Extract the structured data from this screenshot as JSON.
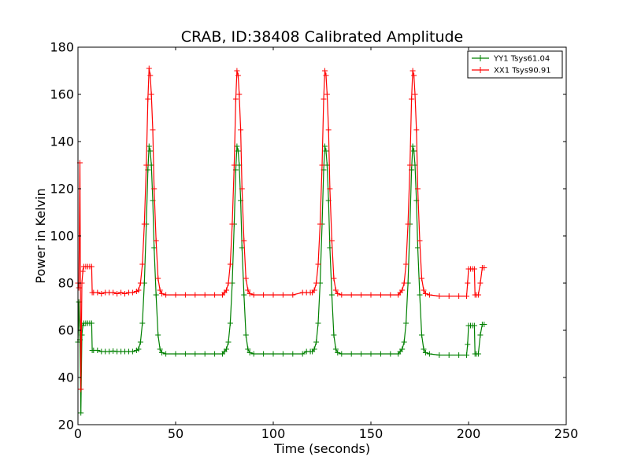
{
  "chart_data": {
    "type": "line",
    "title": "CRAB, ID:38408 Calibrated Amplitude",
    "xlabel": "Time (seconds)",
    "ylabel": "Power in Kelvin",
    "xlim": [
      0,
      250
    ],
    "ylim": [
      20,
      180
    ],
    "xticks": [
      0,
      50,
      100,
      150,
      200,
      250
    ],
    "yticks": [
      20,
      40,
      60,
      80,
      100,
      120,
      140,
      160,
      180
    ],
    "grid": false,
    "legend_position": "top-right",
    "marker": "+",
    "series": [
      {
        "name": "YY1 Tsys61.04",
        "color": "#008000",
        "points": [
          [
            0,
            55
          ],
          [
            0.5,
            72
          ],
          [
            1,
            56
          ],
          [
            1.5,
            25
          ],
          [
            2,
            58
          ],
          [
            2.5,
            62
          ],
          [
            3,
            63
          ],
          [
            4,
            63
          ],
          [
            5,
            63
          ],
          [
            6,
            63
          ],
          [
            7,
            63
          ],
          [
            7.3,
            51.5
          ],
          [
            8,
            51.5
          ],
          [
            10,
            51.5
          ],
          [
            12,
            51
          ],
          [
            14,
            51
          ],
          [
            16,
            51
          ],
          [
            18,
            51.2
          ],
          [
            20,
            51
          ],
          [
            22,
            51
          ],
          [
            24,
            51
          ],
          [
            26,
            51
          ],
          [
            28,
            51
          ],
          [
            30,
            51.5
          ],
          [
            31,
            52
          ],
          [
            32,
            55
          ],
          [
            33,
            63
          ],
          [
            34,
            80
          ],
          [
            35,
            105
          ],
          [
            35.8,
            128
          ],
          [
            36.4,
            138
          ],
          [
            37,
            136
          ],
          [
            37.6,
            130
          ],
          [
            38.3,
            115
          ],
          [
            39,
            95
          ],
          [
            40,
            75
          ],
          [
            41,
            58
          ],
          [
            42,
            52
          ],
          [
            43,
            50.5
          ],
          [
            45,
            50
          ],
          [
            50,
            50
          ],
          [
            55,
            50
          ],
          [
            60,
            50
          ],
          [
            65,
            50
          ],
          [
            70,
            50
          ],
          [
            74,
            50
          ],
          [
            75,
            51
          ],
          [
            76,
            52
          ],
          [
            77,
            55
          ],
          [
            78,
            63
          ],
          [
            79,
            80
          ],
          [
            80,
            105
          ],
          [
            80.8,
            128
          ],
          [
            81.4,
            138
          ],
          [
            82,
            136
          ],
          [
            82.6,
            130
          ],
          [
            83.3,
            115
          ],
          [
            84,
            95
          ],
          [
            85,
            75
          ],
          [
            86,
            58
          ],
          [
            87,
            52
          ],
          [
            88,
            50.5
          ],
          [
            90,
            50
          ],
          [
            95,
            50
          ],
          [
            100,
            50
          ],
          [
            105,
            50
          ],
          [
            110,
            50
          ],
          [
            115,
            50
          ],
          [
            117,
            51
          ],
          [
            119,
            51
          ],
          [
            120,
            51
          ],
          [
            121,
            52
          ],
          [
            122,
            55
          ],
          [
            123,
            63
          ],
          [
            124,
            80
          ],
          [
            125,
            105
          ],
          [
            125.8,
            128
          ],
          [
            126.4,
            138
          ],
          [
            127,
            136
          ],
          [
            127.6,
            130
          ],
          [
            128.3,
            115
          ],
          [
            129,
            95
          ],
          [
            130,
            75
          ],
          [
            131,
            58
          ],
          [
            132,
            52
          ],
          [
            133,
            50.5
          ],
          [
            135,
            50
          ],
          [
            140,
            50
          ],
          [
            145,
            50
          ],
          [
            150,
            50
          ],
          [
            155,
            50
          ],
          [
            160,
            50
          ],
          [
            164,
            50
          ],
          [
            165,
            51
          ],
          [
            166,
            52
          ],
          [
            167,
            55
          ],
          [
            168,
            63
          ],
          [
            169,
            80
          ],
          [
            170,
            105
          ],
          [
            170.8,
            128
          ],
          [
            171.4,
            138
          ],
          [
            172,
            136
          ],
          [
            172.6,
            130
          ],
          [
            173.3,
            115
          ],
          [
            174,
            95
          ],
          [
            175,
            75
          ],
          [
            176,
            58
          ],
          [
            177,
            52
          ],
          [
            178,
            50.5
          ],
          [
            180,
            50
          ],
          [
            185,
            49.5
          ],
          [
            190,
            49.5
          ],
          [
            195,
            49.5
          ],
          [
            199,
            49.5
          ],
          [
            199.5,
            54
          ],
          [
            200,
            62
          ],
          [
            201,
            62
          ],
          [
            202,
            62
          ],
          [
            203,
            62
          ],
          [
            203.3,
            50
          ],
          [
            204,
            50
          ],
          [
            205,
            50
          ],
          [
            206,
            58
          ],
          [
            207,
            62.5
          ],
          [
            208,
            62.5
          ]
        ]
      },
      {
        "name": "XX1 Tsys90.91",
        "color": "#ff0000",
        "points": [
          [
            0,
            80
          ],
          [
            0.5,
            78
          ],
          [
            1,
            131
          ],
          [
            1.5,
            35
          ],
          [
            2,
            80
          ],
          [
            2.5,
            85
          ],
          [
            3,
            87
          ],
          [
            4,
            87
          ],
          [
            5,
            87
          ],
          [
            6,
            87
          ],
          [
            7,
            87
          ],
          [
            7.3,
            76
          ],
          [
            8,
            76
          ],
          [
            10,
            76
          ],
          [
            12,
            75.5
          ],
          [
            14,
            76
          ],
          [
            16,
            76
          ],
          [
            18,
            76
          ],
          [
            20,
            75.5
          ],
          [
            22,
            76
          ],
          [
            24,
            75.5
          ],
          [
            26,
            76
          ],
          [
            28,
            76
          ],
          [
            30,
            76.5
          ],
          [
            31,
            77
          ],
          [
            32,
            80
          ],
          [
            33,
            88
          ],
          [
            34,
            105
          ],
          [
            35,
            130
          ],
          [
            35.8,
            158
          ],
          [
            36.4,
            171
          ],
          [
            37,
            168
          ],
          [
            37.6,
            160
          ],
          [
            38.3,
            145
          ],
          [
            39,
            120
          ],
          [
            40,
            98
          ],
          [
            41,
            82
          ],
          [
            42,
            77
          ],
          [
            43,
            75.5
          ],
          [
            45,
            75
          ],
          [
            50,
            75
          ],
          [
            55,
            75
          ],
          [
            60,
            75
          ],
          [
            65,
            75
          ],
          [
            70,
            75
          ],
          [
            74,
            75
          ],
          [
            75,
            76
          ],
          [
            76,
            77
          ],
          [
            77,
            80
          ],
          [
            78,
            88
          ],
          [
            79,
            105
          ],
          [
            80,
            130
          ],
          [
            80.8,
            158
          ],
          [
            81.4,
            170
          ],
          [
            82,
            168
          ],
          [
            82.6,
            160
          ],
          [
            83.3,
            145
          ],
          [
            84,
            120
          ],
          [
            85,
            98
          ],
          [
            86,
            82
          ],
          [
            87,
            77
          ],
          [
            88,
            75.5
          ],
          [
            90,
            75
          ],
          [
            95,
            75
          ],
          [
            100,
            75
          ],
          [
            105,
            75
          ],
          [
            110,
            75
          ],
          [
            115,
            76
          ],
          [
            117,
            76
          ],
          [
            119,
            76
          ],
          [
            120,
            76
          ],
          [
            121,
            77
          ],
          [
            122,
            80
          ],
          [
            123,
            88
          ],
          [
            124,
            105
          ],
          [
            125,
            130
          ],
          [
            125.8,
            158
          ],
          [
            126.4,
            170
          ],
          [
            127,
            168
          ],
          [
            127.6,
            160
          ],
          [
            128.3,
            145
          ],
          [
            129,
            120
          ],
          [
            130,
            98
          ],
          [
            131,
            82
          ],
          [
            132,
            77
          ],
          [
            133,
            75.5
          ],
          [
            135,
            75
          ],
          [
            140,
            75
          ],
          [
            145,
            75
          ],
          [
            150,
            75
          ],
          [
            155,
            75
          ],
          [
            160,
            75
          ],
          [
            164,
            75
          ],
          [
            165,
            76
          ],
          [
            166,
            77
          ],
          [
            167,
            80
          ],
          [
            168,
            88
          ],
          [
            169,
            105
          ],
          [
            170,
            130
          ],
          [
            170.8,
            158
          ],
          [
            171.4,
            170
          ],
          [
            172,
            168
          ],
          [
            172.6,
            160
          ],
          [
            173.3,
            145
          ],
          [
            174,
            120
          ],
          [
            175,
            98
          ],
          [
            176,
            82
          ],
          [
            177,
            77
          ],
          [
            178,
            75.5
          ],
          [
            180,
            75
          ],
          [
            185,
            74.5
          ],
          [
            190,
            74.5
          ],
          [
            195,
            74.5
          ],
          [
            199,
            74.5
          ],
          [
            199.5,
            80
          ],
          [
            200,
            86
          ],
          [
            201,
            86
          ],
          [
            202,
            86
          ],
          [
            203,
            86
          ],
          [
            203.3,
            75
          ],
          [
            204,
            75
          ],
          [
            205,
            75
          ],
          [
            206,
            80
          ],
          [
            207,
            86.5
          ],
          [
            208,
            86.5
          ]
        ]
      }
    ]
  }
}
